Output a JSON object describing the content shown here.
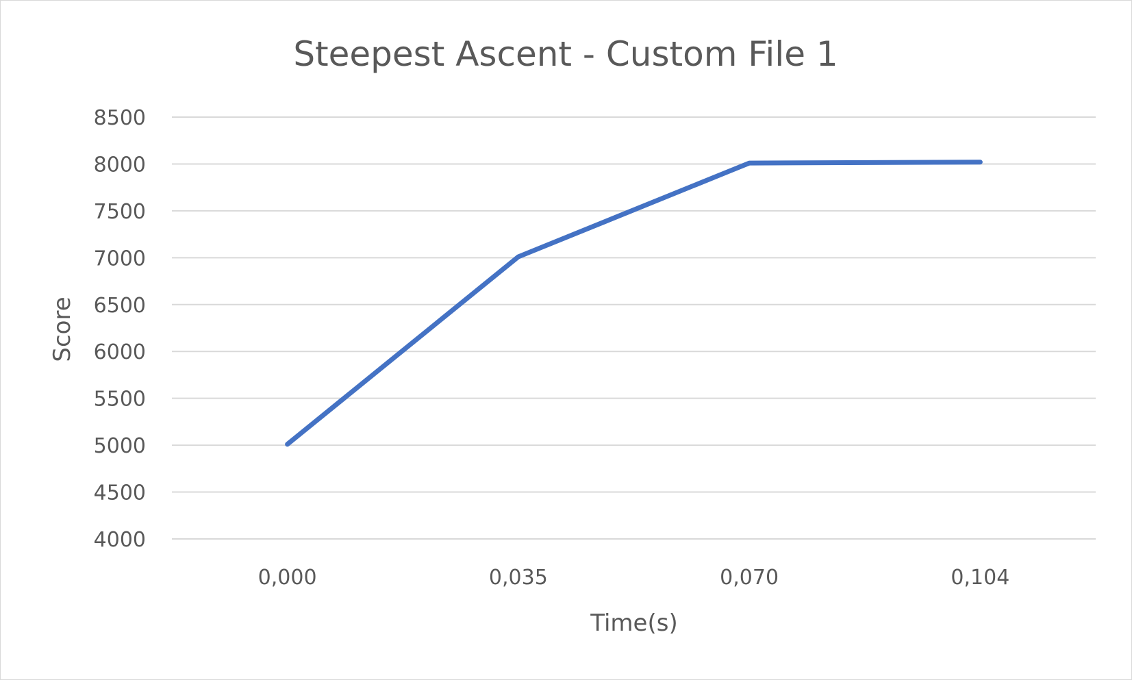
{
  "chart_data": {
    "type": "line",
    "title": "Steepest Ascent - Custom File 1",
    "xlabel": "Time(s)",
    "ylabel": "Score",
    "categories": [
      "0,000",
      "0,035",
      "0,070",
      "0,104"
    ],
    "series": [
      {
        "values": [
          5010,
          7010,
          8010,
          8020
        ],
        "color": "#4472c4"
      }
    ],
    "ylim": [
      4000,
      8500
    ],
    "yticks": [
      4000,
      4500,
      5000,
      5500,
      6000,
      6500,
      7000,
      7500,
      8000,
      8500
    ],
    "grid": true,
    "legend": "none"
  }
}
